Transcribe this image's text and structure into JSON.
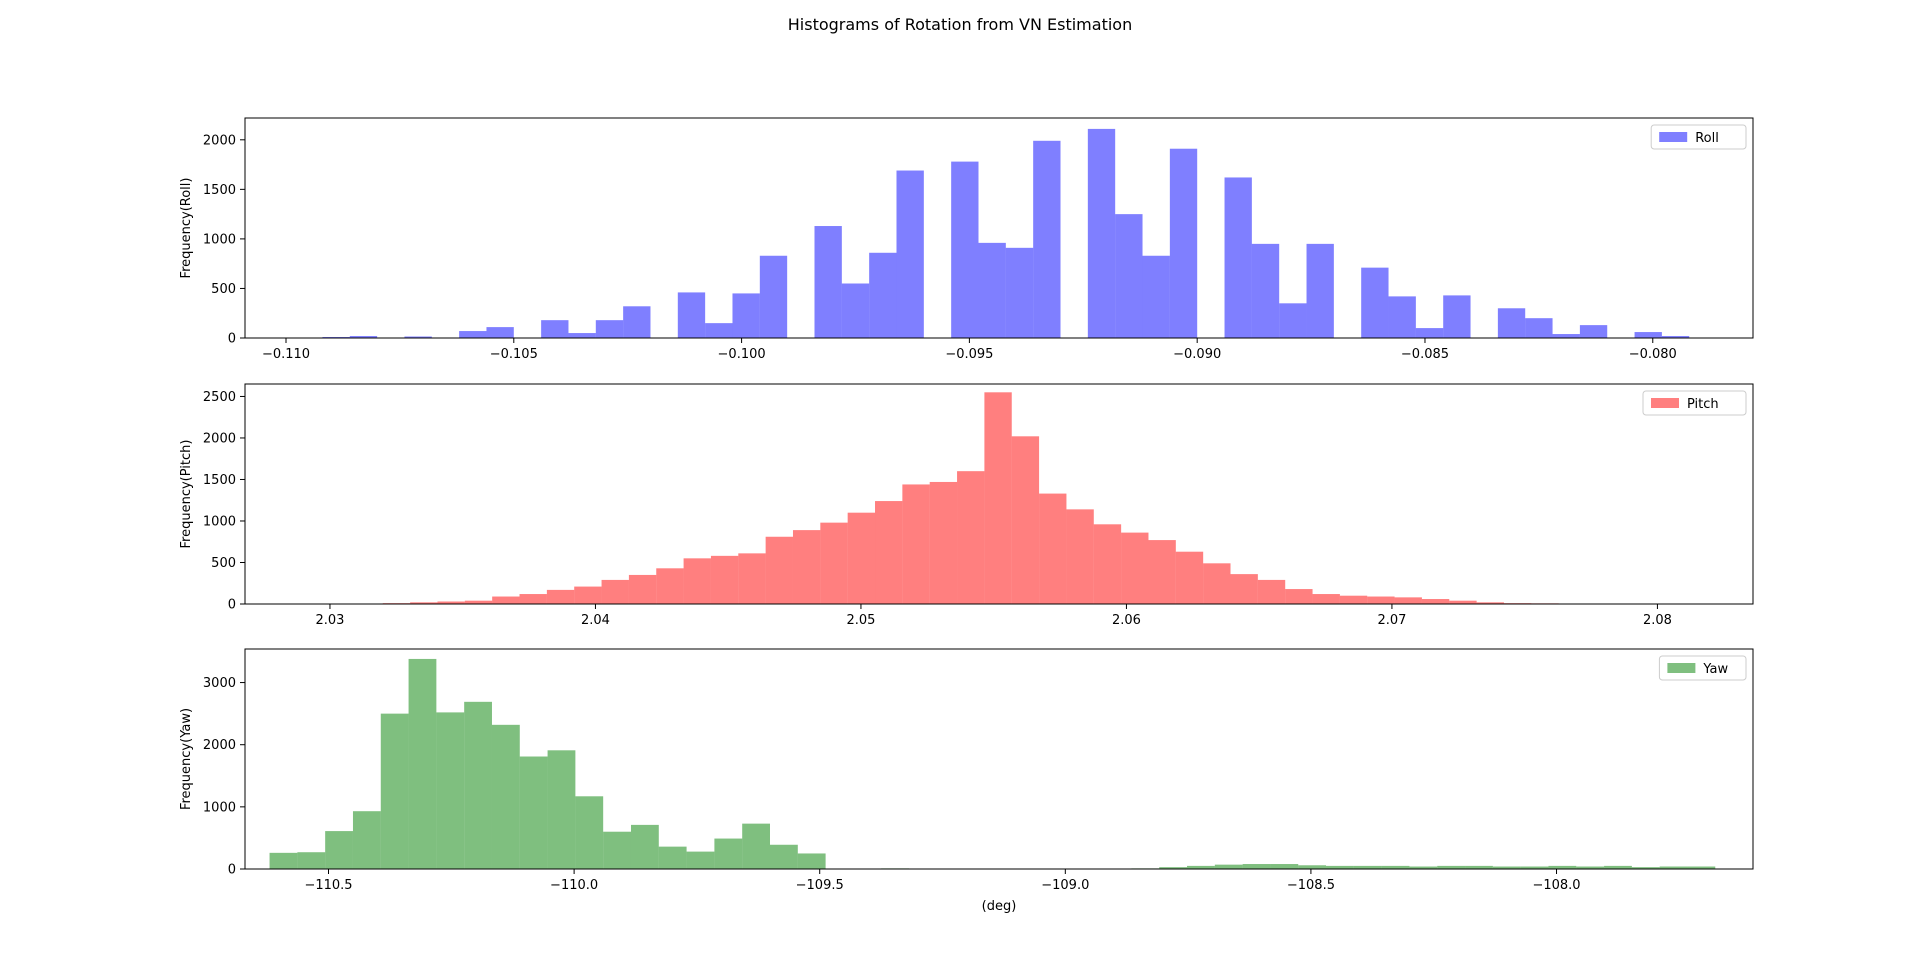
{
  "chart_data": {
    "title": "Histograms of Rotation from VN Estimation",
    "charts": [
      {
        "type": "bar",
        "name": "roll",
        "legend": "Roll",
        "color": "#0000ff",
        "alpha": 0.5,
        "ylabel": "Frequency(Roll)",
        "xlabel": "",
        "xlim": [
          -0.1109,
          -0.0778
        ],
        "ylim": [
          0,
          2220
        ],
        "xticks": [
          -0.11,
          -0.105,
          -0.1,
          -0.095,
          -0.09,
          -0.085,
          -0.08
        ],
        "xtick_labels": [
          "−0.110",
          "−0.105",
          "−0.100",
          "−0.095",
          "−0.090",
          "−0.085",
          "−0.080"
        ],
        "yticks": [
          0,
          500,
          1000,
          1500,
          2000
        ],
        "bin_start": -0.1104,
        "bin_width": 0.0006,
        "values": [
          2,
          0,
          10,
          20,
          0,
          15,
          5,
          70,
          110,
          0,
          180,
          50,
          180,
          320,
          0,
          460,
          150,
          450,
          830,
          0,
          1130,
          550,
          860,
          1690,
          0,
          1780,
          960,
          910,
          1990,
          0,
          2110,
          1250,
          830,
          1910,
          0,
          1620,
          950,
          350,
          950,
          0,
          710,
          420,
          100,
          430,
          0,
          300,
          200,
          40,
          130,
          0,
          60,
          20
        ]
      },
      {
        "type": "bar",
        "name": "pitch",
        "legend": "Pitch",
        "color": "#ff0000",
        "alpha": 0.5,
        "ylabel": "Frequency(Pitch)",
        "xlabel": "",
        "xlim": [
          2.0268,
          2.0836
        ],
        "ylim": [
          0,
          2650
        ],
        "xticks": [
          2.03,
          2.04,
          2.05,
          2.06,
          2.07,
          2.08
        ],
        "xtick_labels": [
          "2.03",
          "2.04",
          "2.05",
          "2.06",
          "2.07",
          "2.08"
        ],
        "yticks": [
          0,
          500,
          1000,
          1500,
          2000,
          2500
        ],
        "bin_start": 2.0289,
        "bin_width": 0.00103,
        "values": [
          2,
          2,
          5,
          10,
          20,
          30,
          40,
          90,
          120,
          170,
          210,
          290,
          350,
          430,
          550,
          580,
          610,
          810,
          890,
          980,
          1100,
          1240,
          1440,
          1470,
          1600,
          2550,
          2020,
          1330,
          1140,
          960,
          860,
          770,
          630,
          490,
          360,
          290,
          180,
          120,
          100,
          90,
          80,
          60,
          40,
          20,
          10,
          8,
          5,
          5,
          3,
          3,
          2,
          2,
          5
        ]
      },
      {
        "type": "bar",
        "name": "yaw",
        "legend": "Yaw",
        "color": "#008000",
        "alpha": 0.5,
        "ylabel": "Frequency(Yaw)",
        "xlabel": "(deg)",
        "xlim": [
          -110.67,
          -107.6
        ],
        "ylim": [
          0,
          3540
        ],
        "xticks": [
          -110.5,
          -110.0,
          -109.5,
          -109.0,
          -108.5,
          -108.0
        ],
        "xtick_labels": [
          "−110.5",
          "−110.0",
          "−109.5",
          "−109.0",
          "−108.5",
          "−108.0"
        ],
        "yticks": [
          0,
          1000,
          2000,
          3000
        ],
        "bin_start": -110.62,
        "bin_width": 0.0566,
        "values": [
          260,
          270,
          610,
          930,
          2500,
          3380,
          2520,
          2690,
          2320,
          1810,
          1910,
          1170,
          600,
          710,
          360,
          280,
          490,
          730,
          390,
          250,
          5,
          5,
          10,
          5,
          3,
          3,
          2,
          2,
          3,
          2,
          5,
          10,
          30,
          50,
          70,
          80,
          80,
          60,
          50,
          50,
          50,
          40,
          50,
          50,
          40,
          40,
          50,
          40,
          50,
          30,
          40,
          40
        ]
      }
    ]
  }
}
